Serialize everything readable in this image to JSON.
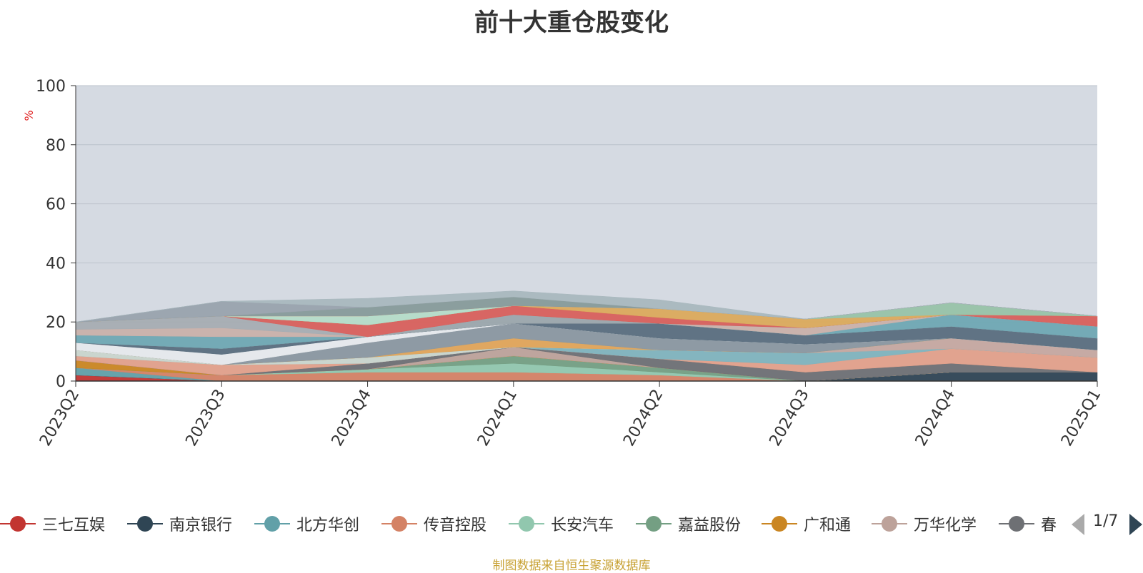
{
  "chart_data": {
    "type": "area",
    "stacked": true,
    "title": "前十大重仓股变化",
    "ylabel": "%",
    "ylim": [
      0,
      100
    ],
    "yticks": [
      0,
      20,
      40,
      60,
      80,
      100
    ],
    "grid": true,
    "x": [
      "2023Q2",
      "2023Q3",
      "2023Q4",
      "2024Q1",
      "2024Q2",
      "2024Q3",
      "2024Q4",
      "2025Q1"
    ],
    "series": [
      {
        "name": "三七互娱",
        "color": "#c23531",
        "values": [
          2,
          0,
          0,
          0,
          0,
          0,
          0,
          0
        ]
      },
      {
        "name": "南京银行",
        "color": "#2f4554",
        "values": [
          0,
          0,
          0,
          0,
          0,
          0,
          3,
          3
        ]
      },
      {
        "name": "北方华创",
        "color": "#61a0a8",
        "values": [
          2.5,
          0,
          0,
          0,
          0,
          0,
          0,
          0
        ]
      },
      {
        "name": "传音控股",
        "color": "#d48265",
        "values": [
          0,
          2,
          3,
          3,
          2,
          0,
          0,
          0
        ]
      },
      {
        "name": "长安汽车",
        "color": "#91c7ae",
        "values": [
          0,
          0,
          1,
          3,
          1,
          0,
          0,
          0
        ]
      },
      {
        "name": "嘉益股份",
        "color": "#749f83",
        "values": [
          0,
          0,
          0,
          2.5,
          1.5,
          0,
          0,
          0
        ]
      },
      {
        "name": "广和通",
        "color": "#ca8622",
        "values": [
          2.5,
          0,
          0,
          0,
          0,
          0,
          0,
          0
        ]
      },
      {
        "name": "万华化学",
        "color": "#bda29a",
        "values": [
          0,
          0,
          0,
          3,
          0,
          0,
          0,
          0
        ]
      },
      {
        "name": "春",
        "color": "#6e7074",
        "values": [
          0,
          0,
          2,
          0,
          3,
          3,
          3,
          0
        ]
      },
      {
        "name": "",
        "color": "#e2a08a",
        "values": [
          1.5,
          3.5,
          0,
          0,
          0,
          2.5,
          5,
          5
        ]
      },
      {
        "name": "",
        "color": "#7fb3bd",
        "values": [
          0,
          0,
          0,
          0,
          3,
          4,
          0,
          0
        ]
      },
      {
        "name": "",
        "color": "#c5a8a0",
        "values": [
          0,
          0,
          0,
          0,
          0,
          0,
          3.5,
          2.5
        ]
      },
      {
        "name": "",
        "color": "#c9d5cc",
        "values": [
          2,
          0,
          2,
          0,
          0,
          0,
          0,
          0
        ]
      },
      {
        "name": "",
        "color": "#a4c8c8",
        "values": [
          0,
          0,
          0,
          0,
          0,
          0,
          0,
          0
        ]
      },
      {
        "name": "",
        "color": "#e0a458",
        "values": [
          0,
          0,
          0,
          3,
          0,
          0,
          0,
          0
        ]
      },
      {
        "name": "",
        "color": "#8a97a0",
        "values": [
          0,
          0,
          5,
          5,
          4,
          3,
          0,
          0
        ]
      },
      {
        "name": "",
        "color": "#e6e9ec",
        "values": [
          2.5,
          3.5,
          2,
          0,
          0,
          0,
          0,
          0
        ]
      },
      {
        "name": "",
        "color": "#5a6e7e",
        "values": [
          0,
          2,
          0,
          0,
          5,
          3,
          4,
          4
        ]
      },
      {
        "name": "",
        "color": "#9ba6ac",
        "values": [
          0,
          0,
          0,
          3,
          0,
          0,
          0,
          0
        ]
      },
      {
        "name": "",
        "color": "#6fa8b3",
        "values": [
          2.5,
          4,
          0,
          0,
          0,
          0,
          4,
          4
        ]
      },
      {
        "name": "",
        "color": "#c9b1aa",
        "values": [
          2,
          3,
          0,
          0,
          0,
          2.5,
          0,
          0
        ]
      },
      {
        "name": "",
        "color": "#a6adb2",
        "values": [
          2.5,
          4,
          0,
          0,
          0,
          0,
          0,
          0
        ]
      },
      {
        "name": "",
        "color": "#d8605c",
        "values": [
          0,
          0,
          4,
          3,
          2,
          0,
          0,
          3.5
        ]
      },
      {
        "name": "",
        "color": "#dbaa5c",
        "values": [
          0,
          0,
          0,
          0,
          3,
          3,
          0,
          0
        ]
      },
      {
        "name": "",
        "color": "#98c3a8",
        "values": [
          0,
          0,
          0,
          0,
          0,
          0,
          4,
          0
        ]
      },
      {
        "name": "",
        "color": "#b5dcc8",
        "values": [
          0,
          0,
          3,
          0,
          0,
          0,
          0,
          0
        ]
      },
      {
        "name": "",
        "color": "#e5a089",
        "values": [
          0,
          0,
          0,
          0,
          0,
          0,
          0,
          0
        ]
      },
      {
        "name": "",
        "color": "#879b9a",
        "values": [
          0,
          0,
          3,
          3,
          0,
          0,
          0,
          0
        ]
      },
      {
        "name": "",
        "color": "#99a3ad",
        "values": [
          0,
          5,
          0,
          0,
          0,
          0,
          0,
          0
        ]
      },
      {
        "name": "",
        "color": "#a9b8be",
        "values": [
          0,
          0,
          3,
          2,
          3,
          0,
          0,
          0
        ]
      }
    ]
  },
  "legend": {
    "items": [
      {
        "label": "三七互娱",
        "color": "#c23531"
      },
      {
        "label": "南京银行",
        "color": "#2f4554"
      },
      {
        "label": "北方华创",
        "color": "#61a0a8"
      },
      {
        "label": "传音控股",
        "color": "#d48265"
      },
      {
        "label": "长安汽车",
        "color": "#91c7ae"
      },
      {
        "label": "嘉益股份",
        "color": "#749f83"
      },
      {
        "label": "广和通",
        "color": "#ca8622"
      },
      {
        "label": "万华化学",
        "color": "#bda29a"
      },
      {
        "label": "春",
        "color": "#6e7074"
      }
    ],
    "pager": {
      "text": "1/7",
      "prev_icon": "triangle-left-icon",
      "next_icon": "triangle-right-icon"
    }
  },
  "source_note": "制图数据来自恒生聚源数据库"
}
